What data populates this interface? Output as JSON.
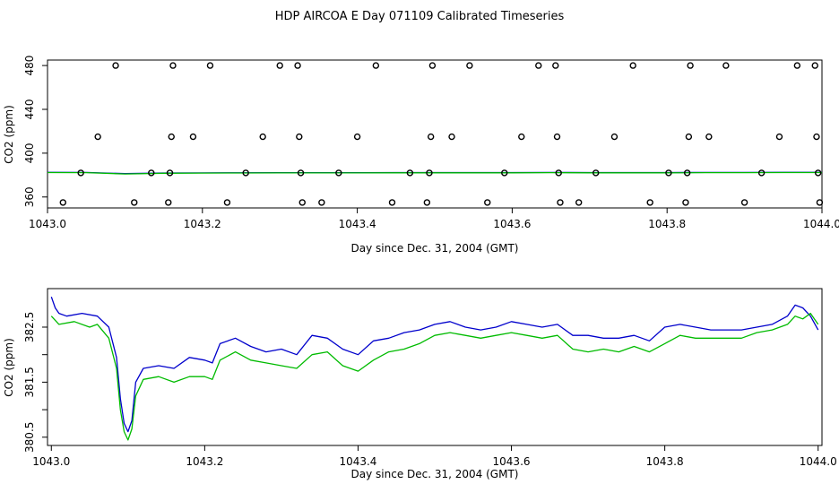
{
  "title": "HDP AIRCOA E  Day 071109  Calibrated Timeseries",
  "colors": {
    "blue": "#0000cc",
    "green": "#00bb00",
    "black": "#000000"
  },
  "chart_data": [
    {
      "type": "scatter",
      "xlabel": "Day since Dec. 31, 2004 (GMT)",
      "ylabel": "CO2 (ppm)",
      "xlim": [
        1043.0,
        1044.0
      ],
      "ylim": [
        350,
        485
      ],
      "x_ticks": [
        "1043.0",
        "1043.2",
        "1043.4",
        "1043.6",
        "1043.8",
        "1044.0"
      ],
      "y_ticks": [
        "360",
        "400",
        "440",
        "480"
      ],
      "y_tick_values": [
        360,
        400,
        440,
        480
      ],
      "points": [
        [
          1043.02,
          355
        ],
        [
          1043.043,
          382
        ],
        [
          1043.065,
          415
        ],
        [
          1043.088,
          480
        ],
        [
          1043.112,
          355
        ],
        [
          1043.134,
          382
        ],
        [
          1043.156,
          355
        ],
        [
          1043.158,
          382
        ],
        [
          1043.16,
          415
        ],
        [
          1043.162,
          480
        ],
        [
          1043.188,
          415
        ],
        [
          1043.21,
          480
        ],
        [
          1043.232,
          355
        ],
        [
          1043.256,
          382
        ],
        [
          1043.278,
          415
        ],
        [
          1043.3,
          480
        ],
        [
          1043.323,
          480
        ],
        [
          1043.325,
          415
        ],
        [
          1043.327,
          382
        ],
        [
          1043.329,
          355
        ],
        [
          1043.354,
          355
        ],
        [
          1043.376,
          382
        ],
        [
          1043.4,
          415
        ],
        [
          1043.424,
          480
        ],
        [
          1043.445,
          355
        ],
        [
          1043.468,
          382
        ],
        [
          1043.49,
          355
        ],
        [
          1043.493,
          382
        ],
        [
          1043.495,
          415
        ],
        [
          1043.497,
          480
        ],
        [
          1043.522,
          415
        ],
        [
          1043.545,
          480
        ],
        [
          1043.568,
          355
        ],
        [
          1043.59,
          382
        ],
        [
          1043.612,
          415
        ],
        [
          1043.634,
          480
        ],
        [
          1043.656,
          480
        ],
        [
          1043.658,
          415
        ],
        [
          1043.66,
          382
        ],
        [
          1043.662,
          355
        ],
        [
          1043.686,
          355
        ],
        [
          1043.708,
          382
        ],
        [
          1043.732,
          415
        ],
        [
          1043.756,
          480
        ],
        [
          1043.778,
          355
        ],
        [
          1043.802,
          382
        ],
        [
          1043.824,
          355
        ],
        [
          1043.826,
          382
        ],
        [
          1043.828,
          415
        ],
        [
          1043.83,
          480
        ],
        [
          1043.854,
          415
        ],
        [
          1043.876,
          480
        ],
        [
          1043.9,
          355
        ],
        [
          1043.922,
          382
        ],
        [
          1043.945,
          415
        ],
        [
          1043.968,
          480
        ],
        [
          1043.991,
          480
        ],
        [
          1043.993,
          415
        ],
        [
          1043.995,
          382
        ],
        [
          1043.997,
          355
        ]
      ],
      "series": [
        {
          "color": "blue",
          "x": [
            1043.0,
            1043.05,
            1043.1,
            1043.15,
            1043.2,
            1043.25,
            1043.3,
            1043.35,
            1043.4,
            1043.45,
            1043.5,
            1043.55,
            1043.6,
            1043.65,
            1043.7,
            1043.75,
            1043.8,
            1043.85,
            1043.9,
            1043.95,
            1044.0
          ],
          "y": [
            382.5,
            382.4,
            381.3,
            381.9,
            382.0,
            382.1,
            382.2,
            382.2,
            382.2,
            382.3,
            382.3,
            382.3,
            382.3,
            382.4,
            382.3,
            382.3,
            382.3,
            382.4,
            382.4,
            382.5,
            382.5
          ]
        },
        {
          "color": "green",
          "x": [
            1043.0,
            1043.05,
            1043.1,
            1043.15,
            1043.2,
            1043.25,
            1043.3,
            1043.35,
            1043.4,
            1043.45,
            1043.5,
            1043.55,
            1043.6,
            1043.65,
            1043.7,
            1043.75,
            1043.8,
            1043.85,
            1043.9,
            1043.95,
            1044.0
          ],
          "y": [
            382.3,
            382.2,
            381.0,
            381.7,
            381.8,
            381.9,
            382.0,
            382.0,
            382.0,
            382.1,
            382.1,
            382.1,
            382.1,
            382.2,
            382.1,
            382.1,
            382.1,
            382.2,
            382.2,
            382.3,
            382.3
          ]
        }
      ]
    },
    {
      "type": "line",
      "xlabel": "Day since Dec. 31, 2004 (GMT)",
      "ylabel": "CO2 (ppm)",
      "xlim": [
        1042.995,
        1044.005
      ],
      "ylim": [
        380.35,
        383.2
      ],
      "x_ticks": [
        "1043.0",
        "1043.2",
        "1043.4",
        "1043.6",
        "1043.8",
        "1044.0"
      ],
      "y_ticks": [
        "380.5",
        "381.5",
        "382.5"
      ],
      "y_tick_values": [
        380.5,
        381.5,
        382.5
      ],
      "y_minor_tick_values": [
        381.0,
        382.0
      ],
      "series": [
        {
          "color": "blue",
          "x": [
            1043.0,
            1043.005,
            1043.01,
            1043.02,
            1043.04,
            1043.06,
            1043.075,
            1043.085,
            1043.09,
            1043.095,
            1043.1,
            1043.105,
            1043.11,
            1043.12,
            1043.14,
            1043.16,
            1043.18,
            1043.2,
            1043.21,
            1043.22,
            1043.24,
            1043.26,
            1043.28,
            1043.3,
            1043.32,
            1043.34,
            1043.36,
            1043.38,
            1043.4,
            1043.42,
            1043.44,
            1043.46,
            1043.48,
            1043.5,
            1043.52,
            1043.54,
            1043.56,
            1043.58,
            1043.6,
            1043.62,
            1043.64,
            1043.66,
            1043.68,
            1043.7,
            1043.72,
            1043.74,
            1043.76,
            1043.78,
            1043.8,
            1043.82,
            1043.84,
            1043.86,
            1043.88,
            1043.9,
            1043.92,
            1043.94,
            1043.96,
            1043.97,
            1043.98,
            1043.99,
            1044.0
          ],
          "y": [
            383.05,
            382.85,
            382.75,
            382.7,
            382.75,
            382.7,
            382.5,
            381.95,
            381.2,
            380.75,
            380.6,
            380.8,
            381.5,
            381.75,
            381.8,
            381.75,
            381.95,
            381.9,
            381.85,
            382.2,
            382.3,
            382.15,
            382.05,
            382.1,
            382.0,
            382.35,
            382.3,
            382.1,
            382.0,
            382.25,
            382.3,
            382.4,
            382.45,
            382.55,
            382.6,
            382.5,
            382.45,
            382.5,
            382.6,
            382.55,
            382.5,
            382.55,
            382.35,
            382.35,
            382.3,
            382.3,
            382.35,
            382.25,
            382.5,
            382.55,
            382.5,
            382.45,
            382.45,
            382.45,
            382.5,
            382.55,
            382.7,
            382.9,
            382.85,
            382.7,
            382.45
          ]
        },
        {
          "color": "green",
          "x": [
            1043.0,
            1043.01,
            1043.03,
            1043.05,
            1043.06,
            1043.075,
            1043.085,
            1043.09,
            1043.095,
            1043.1,
            1043.105,
            1043.11,
            1043.12,
            1043.14,
            1043.16,
            1043.18,
            1043.2,
            1043.21,
            1043.22,
            1043.24,
            1043.26,
            1043.28,
            1043.3,
            1043.32,
            1043.34,
            1043.36,
            1043.38,
            1043.4,
            1043.42,
            1043.44,
            1043.46,
            1043.48,
            1043.5,
            1043.52,
            1043.54,
            1043.56,
            1043.58,
            1043.6,
            1043.62,
            1043.64,
            1043.66,
            1043.68,
            1043.7,
            1043.72,
            1043.74,
            1043.76,
            1043.78,
            1043.8,
            1043.82,
            1043.84,
            1043.86,
            1043.88,
            1043.9,
            1043.92,
            1043.94,
            1043.96,
            1043.97,
            1043.98,
            1043.99,
            1044.0
          ],
          "y": [
            382.7,
            382.55,
            382.6,
            382.5,
            382.55,
            382.3,
            381.75,
            381.0,
            380.6,
            380.45,
            380.65,
            381.25,
            381.55,
            381.6,
            381.5,
            381.6,
            381.6,
            381.55,
            381.9,
            382.05,
            381.9,
            381.85,
            381.8,
            381.75,
            382.0,
            382.05,
            381.8,
            381.7,
            381.9,
            382.05,
            382.1,
            382.2,
            382.35,
            382.4,
            382.35,
            382.3,
            382.35,
            382.4,
            382.35,
            382.3,
            382.35,
            382.1,
            382.05,
            382.1,
            382.05,
            382.15,
            382.05,
            382.2,
            382.35,
            382.3,
            382.3,
            382.3,
            382.3,
            382.4,
            382.45,
            382.55,
            382.7,
            382.65,
            382.75,
            382.55
          ]
        }
      ]
    }
  ]
}
